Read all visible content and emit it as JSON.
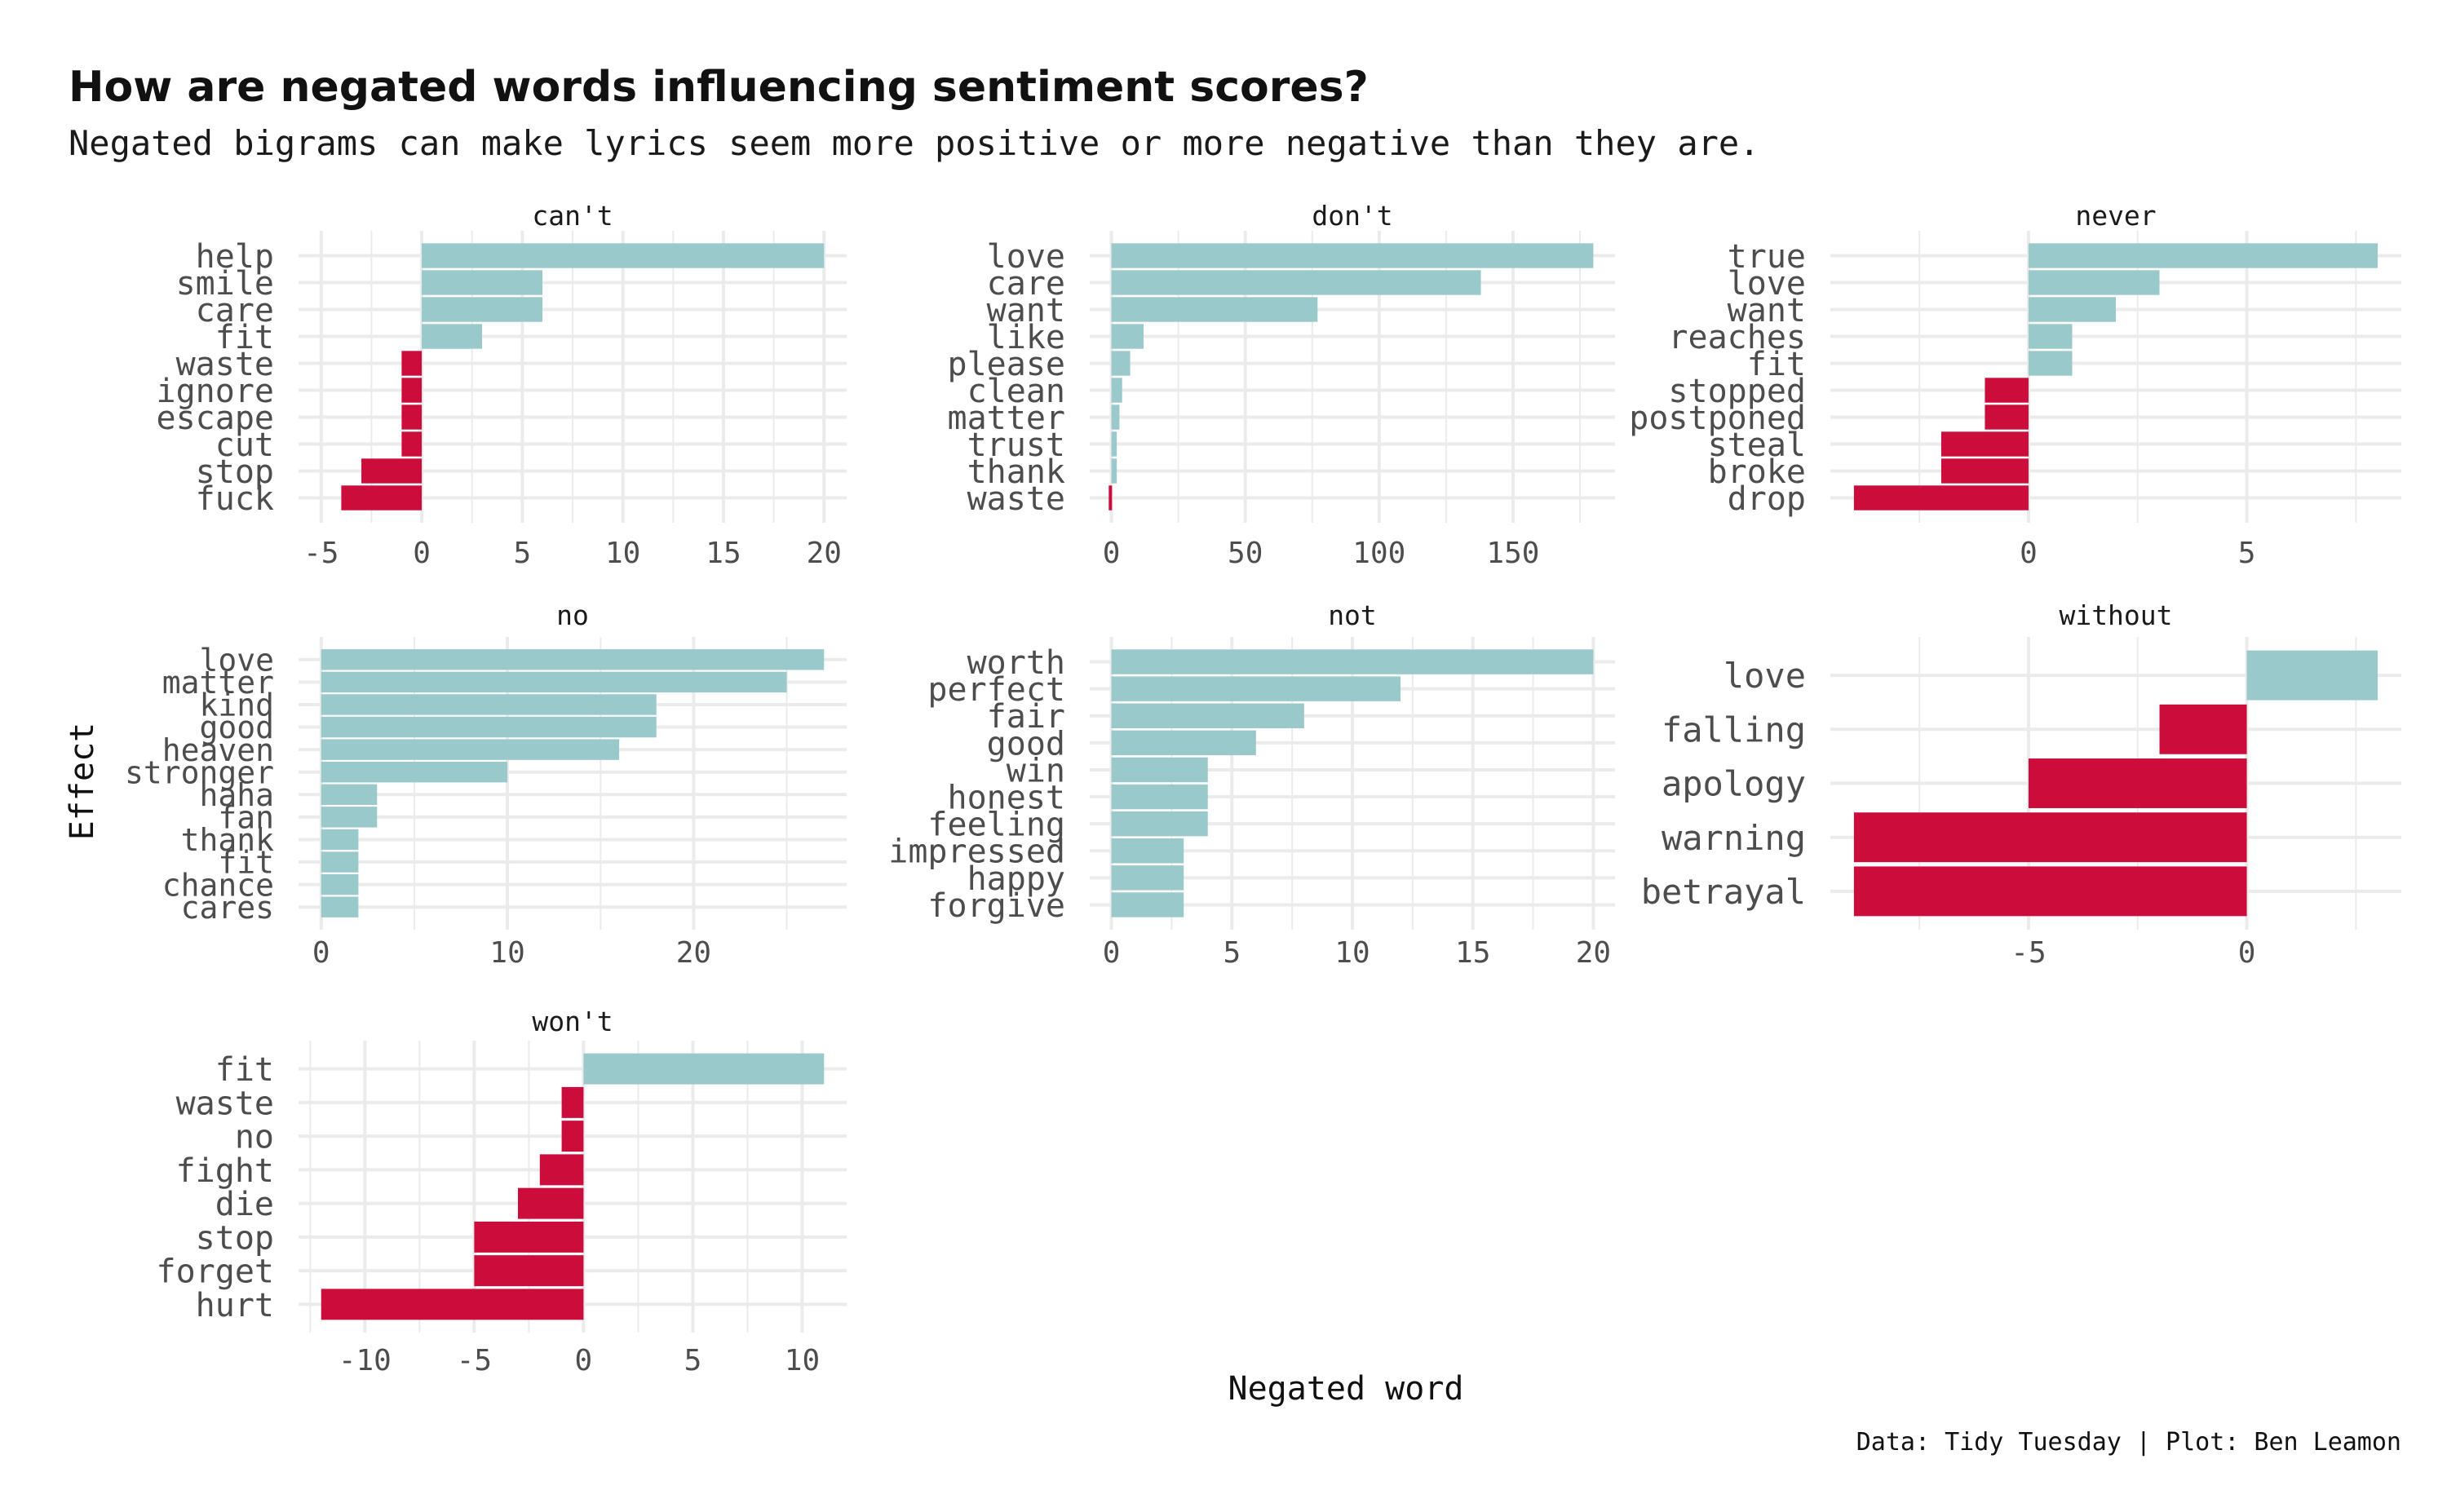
{
  "title": "How are negated words influencing sentiment scores?",
  "subtitle": "Negated bigrams can make lyrics seem more positive or more negative than they are.",
  "caption": "Data: Tidy Tuesday | Plot: Ben Leamon",
  "colors": {
    "positive": "#9ac9cb",
    "negative": "#cc0c3a",
    "grid": "#ebebeb",
    "background": "#ffffff"
  },
  "chart_data": {
    "type": "bar",
    "orientation": "horizontal",
    "facet_by": "negation word",
    "xlabel": "Negated word",
    "ylabel": "Effect",
    "grid": true,
    "legend": "none",
    "facets": [
      {
        "name": "can't",
        "categories": [
          "help",
          "smile",
          "care",
          "fit",
          "waste",
          "ignore",
          "escape",
          "cut",
          "stop",
          "fuck"
        ],
        "values": [
          20,
          6,
          6,
          3,
          -1,
          -1,
          -1,
          -1,
          -3,
          -4
        ],
        "xlim": [
          -5,
          20
        ],
        "ticks": [
          -5,
          0,
          5,
          10,
          15,
          20
        ],
        "tick_labels": [
          "-5",
          "0",
          "5",
          "10",
          "15",
          "20"
        ]
      },
      {
        "name": "don't",
        "categories": [
          "love",
          "care",
          "want",
          "like",
          "please",
          "clean",
          "matter",
          "trust",
          "thank",
          "waste"
        ],
        "values": [
          180,
          138,
          77,
          12,
          7,
          4,
          3,
          2,
          2,
          -1
        ],
        "xlim": [
          0,
          180
        ],
        "ticks": [
          0,
          50,
          100,
          150
        ],
        "tick_labels": [
          "0",
          "50",
          "100",
          "150"
        ]
      },
      {
        "name": "never",
        "categories": [
          "true",
          "love",
          "want",
          "reaches",
          "fit",
          "stopped",
          "postponed",
          "steal",
          "broke",
          "drop"
        ],
        "values": [
          8,
          3,
          2,
          1,
          1,
          -1,
          -1,
          -2,
          -2,
          -4
        ],
        "xlim": [
          -4,
          8
        ],
        "ticks": [
          0,
          5
        ],
        "tick_labels": [
          "0",
          "5"
        ]
      },
      {
        "name": "no",
        "categories": [
          "love",
          "matter",
          "kind",
          "good",
          "heaven",
          "stronger",
          "haha",
          "fan",
          "thank",
          "fit",
          "chance",
          "cares"
        ],
        "values": [
          27,
          25,
          18,
          18,
          16,
          10,
          3,
          3,
          2,
          2,
          2,
          2
        ],
        "xlim": [
          0,
          27
        ],
        "ticks": [
          0,
          10,
          20
        ],
        "tick_labels": [
          "0",
          "10",
          "20"
        ]
      },
      {
        "name": "not",
        "categories": [
          "worth",
          "perfect",
          "fair",
          "good",
          "win",
          "honest",
          "feeling",
          "impressed",
          "happy",
          "forgive"
        ],
        "values": [
          20,
          12,
          8,
          6,
          4,
          4,
          4,
          3,
          3,
          3
        ],
        "xlim": [
          0,
          20
        ],
        "ticks": [
          0,
          5,
          10,
          15,
          20
        ],
        "tick_labels": [
          "0",
          "5",
          "10",
          "15",
          "20"
        ]
      },
      {
        "name": "without",
        "categories": [
          "love",
          "falling",
          "apology",
          "warning",
          "betrayal"
        ],
        "values": [
          3,
          -2,
          -5,
          -9,
          -9
        ],
        "xlim": [
          -9,
          3
        ],
        "ticks": [
          -5,
          0
        ],
        "tick_labels": [
          "-5",
          "0"
        ]
      },
      {
        "name": "won't",
        "categories": [
          "fit",
          "waste",
          "no",
          "fight",
          "die",
          "stop",
          "forget",
          "hurt"
        ],
        "values": [
          11,
          -1,
          -1,
          -2,
          -3,
          -5,
          -5,
          -12
        ],
        "xlim": [
          -12,
          11
        ],
        "ticks": [
          -10,
          -5,
          0,
          5,
          10
        ],
        "tick_labels": [
          "-10",
          "-5",
          "0",
          "5",
          "10"
        ]
      }
    ]
  }
}
